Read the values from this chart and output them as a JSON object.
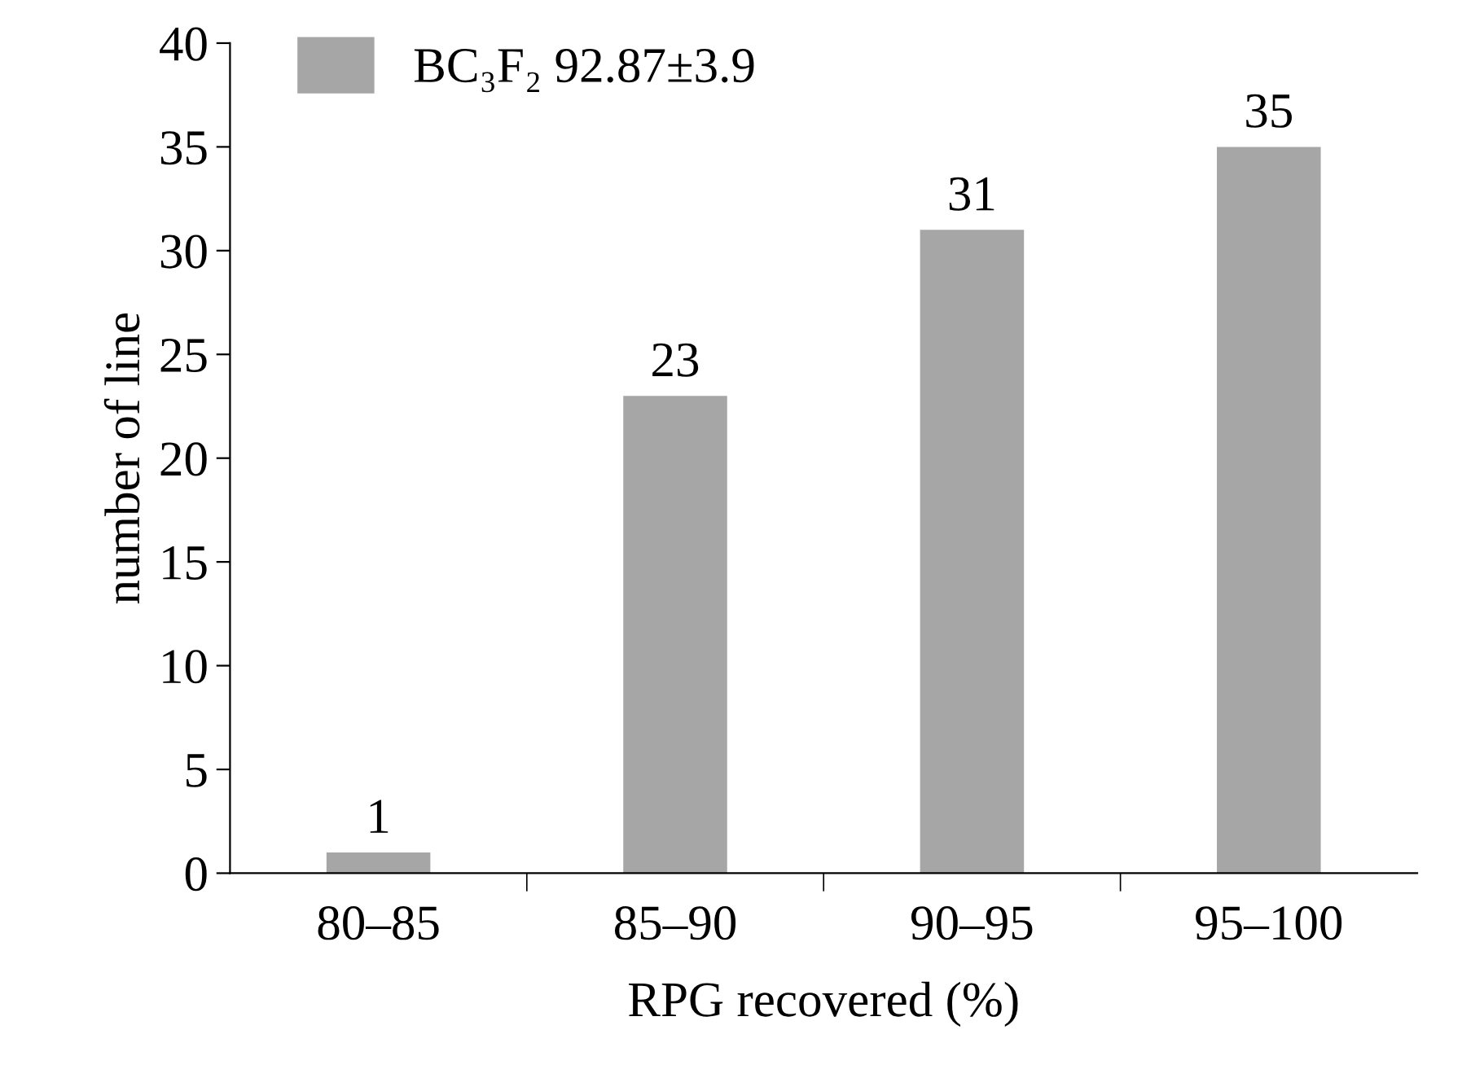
{
  "chart_data": {
    "type": "bar",
    "xlabel": "RPG recovered (%)",
    "ylabel": "number of line",
    "categories": [
      "80–85",
      "85–90",
      "90–95",
      "95–100"
    ],
    "series": [
      {
        "name": "BC₃F₂ 92.87±3.9",
        "color": "#a6a6a6",
        "values": [
          1,
          23,
          31,
          35
        ]
      }
    ],
    "ylim": [
      0,
      40
    ],
    "yticks": [
      0,
      5,
      10,
      15,
      20,
      25,
      30,
      35,
      40
    ],
    "data_labels": true,
    "legend": "top left",
    "grid": false
  }
}
